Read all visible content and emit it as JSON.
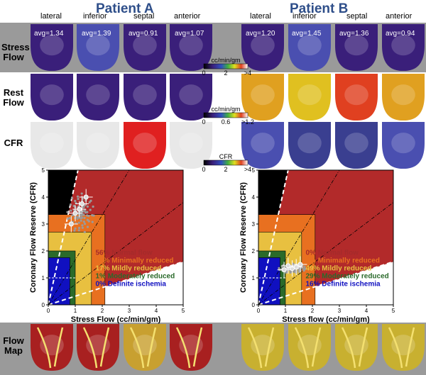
{
  "patients": [
    {
      "title": "Patient A",
      "views": [
        "lateral",
        "inferior",
        "septal",
        "anterior"
      ],
      "stress_avgs": [
        "avg=1.34",
        "avg=1.39",
        "avg=0.91",
        "avg=1.07"
      ],
      "stress_palette": [
        "#3a1f7a",
        "#4a4fb0",
        "#3a1f7a",
        "#3a1f7a"
      ],
      "rest_palette": [
        "#3a1f7a",
        "#3a1f7a",
        "#3a1f7a",
        "#3a1f7a"
      ],
      "cfr_palette": [
        "#e8e8e8",
        "#e8e8e8",
        "#e02020",
        "#e8e8e8"
      ],
      "flowmap_palette": [
        "#a82020",
        "#a82020",
        "#c8a030",
        "#a82020"
      ],
      "chart_data": {
        "type": "scatter",
        "xlabel": "Stress Flow (cc/min/gm)",
        "ylabel": "Coronary Flow Reserve (CFR)",
        "xlim": [
          0,
          5
        ],
        "ylim": [
          0,
          5
        ],
        "x_ticks": [
          "0",
          "1",
          "2",
          "3",
          "4",
          "5"
        ],
        "y_ticks": [
          "0",
          "1",
          "2",
          "3",
          "4",
          "5"
        ],
        "cluster_center": [
          1.2,
          3.4
        ],
        "points": [
          [
            0.85,
            3.0
          ],
          [
            1.0,
            3.4
          ],
          [
            1.15,
            3.55
          ],
          [
            1.25,
            3.75
          ],
          [
            1.4,
            4.0
          ]
        ],
        "legend": [
          {
            "label": "56% Normal flow",
            "color": "#a52a2a"
          },
          {
            "label": "26% Minimally reduced",
            "color": "#e87020"
          },
          {
            "label": "17% Mildly reduced",
            "color": "#e8c040"
          },
          {
            "label": "1% Moderately reduced",
            "color": "#2a6a2a"
          },
          {
            "label": "0% Definite ischemia",
            "color": "#1010c0"
          }
        ]
      }
    },
    {
      "title": "Patient B",
      "views": [
        "lateral",
        "inferior",
        "septal",
        "anterior"
      ],
      "stress_avgs": [
        "avg=1.20",
        "avg=1.45",
        "avg=1.36",
        "avg=0.94"
      ],
      "stress_palette": [
        "#3a1f7a",
        "#4a4fb0",
        "#3a1f7a",
        "#3a1f7a"
      ],
      "rest_palette": [
        "#e0a020",
        "#e0c020",
        "#e04020",
        "#e0a020"
      ],
      "cfr_palette": [
        "#4a4fb0",
        "#3a3f90",
        "#3a3f90",
        "#4a4fb0"
      ],
      "flowmap_palette": [
        "#c8b030",
        "#c8b030",
        "#c8b030",
        "#c8b030"
      ],
      "chart_data": {
        "type": "scatter",
        "xlabel": "Stress flow (cc/min/gm)",
        "ylabel": "Coronary Flow Reserve (CFR)",
        "xlim": [
          0,
          5
        ],
        "ylim": [
          0,
          5
        ],
        "x_ticks": [
          "0",
          "1",
          "2",
          "3",
          "4",
          "5"
        ],
        "y_ticks": [
          "0",
          "1",
          "2",
          "3",
          "4",
          "5"
        ],
        "cluster_center": [
          1.25,
          1.35
        ],
        "points": [
          [
            0.95,
            1.3
          ],
          [
            1.1,
            1.45
          ],
          [
            1.25,
            1.35
          ],
          [
            1.4,
            1.4
          ],
          [
            1.55,
            1.5
          ]
        ],
        "legend": [
          {
            "label": "0% Normal flow",
            "color": "#a52a2a"
          },
          {
            "label": "6% Minimally reduced",
            "color": "#e87020"
          },
          {
            "label": "49% Mildly reduced",
            "color": "#e8c040"
          },
          {
            "label": "29% Moderately reduced",
            "color": "#2a6a2a"
          },
          {
            "label": "16% Definite ischemia",
            "color": "#1010c0"
          }
        ]
      }
    }
  ],
  "rows": {
    "stress": [
      "Stress",
      "Flow"
    ],
    "rest": [
      "Rest",
      "Flow"
    ],
    "cfr": [
      "CFR"
    ],
    "flowmap": [
      "Flow",
      "Map"
    ]
  },
  "colorbars": [
    {
      "unit": "cc/min/gm",
      "min": "0",
      "mid": "2",
      "max": ">4"
    },
    {
      "unit": "cc/min/gm",
      "min": "0",
      "mid": "0.6",
      "max": ">1.2"
    },
    {
      "unit": "CFR",
      "min": "0",
      "mid": "2",
      "max": ">4"
    }
  ]
}
